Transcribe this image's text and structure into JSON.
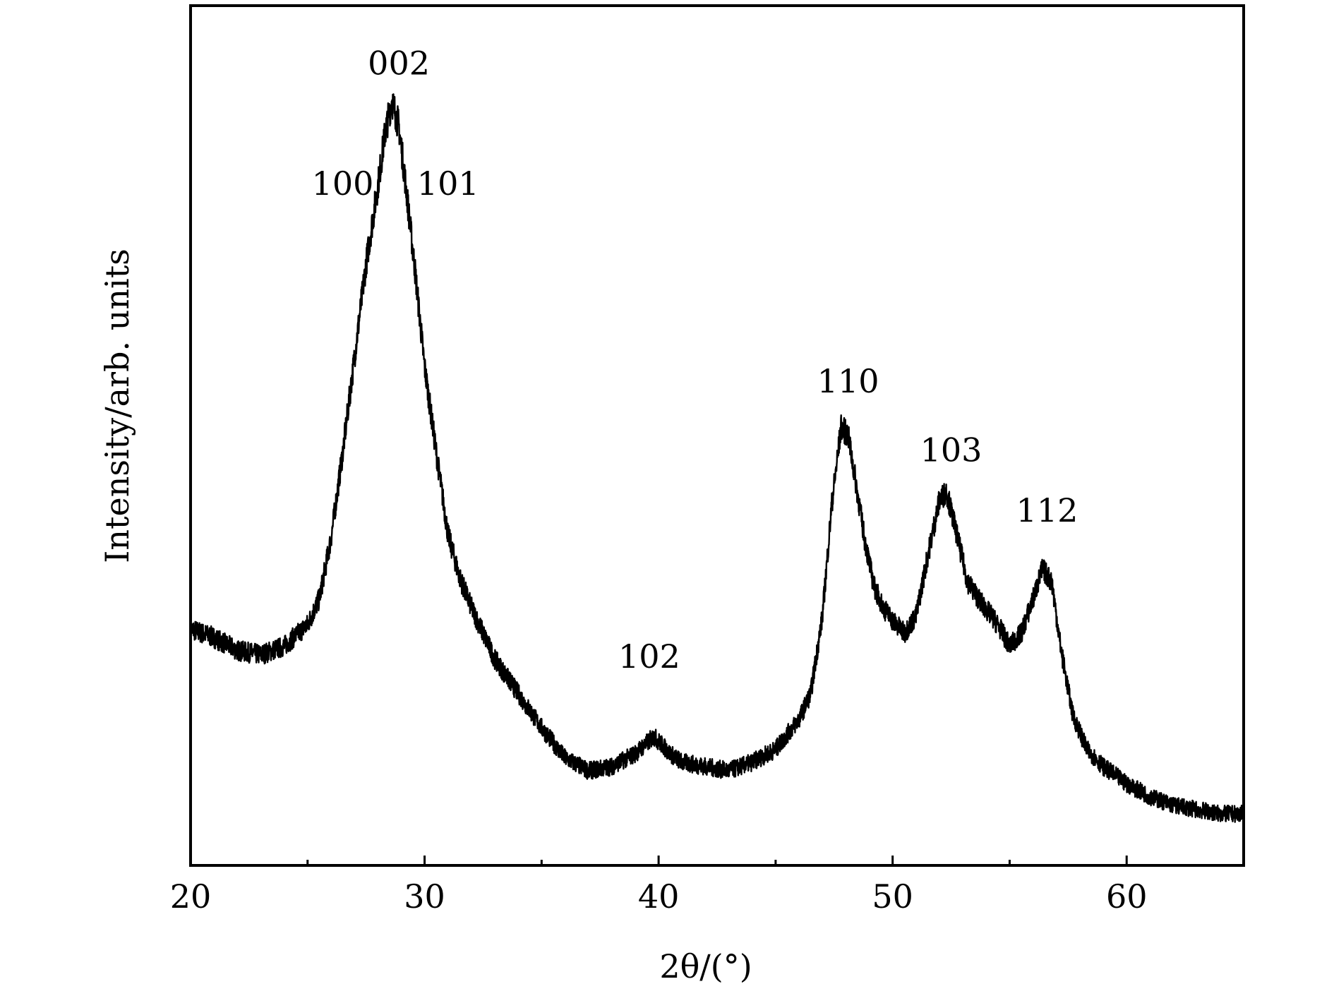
{
  "chart_data": {
    "type": "line",
    "xlabel": "2θ/(°)",
    "ylabel": "Intensity/arb. units",
    "xlim": [
      20,
      65
    ],
    "ylim": [
      0,
      100
    ],
    "x_ticks": [
      20,
      30,
      40,
      50,
      60
    ],
    "x_tick_labels": [
      "20",
      "30",
      "40",
      "50",
      "60"
    ],
    "x_minor_ticks": [
      25,
      35,
      45,
      55
    ],
    "grid": false,
    "legend": "none",
    "line_color": "#000000",
    "series": [
      {
        "x": [
          20,
          21,
          22,
          23,
          24,
          25,
          25.5,
          26,
          26.5,
          27,
          27.5,
          28,
          28.3,
          28.6,
          28.9,
          29.2,
          29.6,
          30,
          30.5,
          31,
          31.5,
          32,
          33,
          34,
          35,
          36,
          37,
          38,
          39,
          39.8,
          40.5,
          41,
          42,
          43,
          44,
          45,
          46,
          46.5,
          47,
          47.4,
          47.8,
          48.1,
          48.4,
          48.8,
          49.2,
          49.6,
          50,
          50.5,
          51,
          51.5,
          52,
          52.3,
          52.7,
          53.2,
          53.8,
          54.5,
          55,
          55.5,
          56,
          56.4,
          56.8,
          57.2,
          57.7,
          58.3,
          59,
          60,
          61,
          62,
          63,
          64,
          65
        ],
        "y": [
          27.5,
          26.5,
          25,
          24.5,
          25.5,
          28,
          31,
          38,
          48,
          59,
          70,
          79,
          85,
          89,
          86,
          79,
          69,
          58,
          48,
          38.5,
          33.5,
          30,
          24,
          20,
          16,
          12.5,
          11,
          11.5,
          13,
          15,
          13,
          12,
          11.5,
          11,
          12,
          13.5,
          17,
          20,
          29,
          42,
          51,
          50,
          45,
          38,
          32.5,
          30,
          28.5,
          27,
          29,
          36,
          42.5,
          43.5,
          39,
          33,
          30.5,
          28,
          25.5,
          27,
          31,
          34.5,
          33,
          25,
          17.5,
          13.5,
          11.5,
          9.5,
          8,
          7,
          6.5,
          6,
          6
        ]
      }
    ],
    "annotations": [
      {
        "text": "002",
        "x": 28.9,
        "y": 92
      },
      {
        "text": "100",
        "x": 26.5,
        "y": 78
      },
      {
        "text": "101",
        "x": 31,
        "y": 78
      },
      {
        "text": "102",
        "x": 39.6,
        "y": 23
      },
      {
        "text": "110",
        "x": 48.1,
        "y": 55
      },
      {
        "text": "103",
        "x": 52.5,
        "y": 47
      },
      {
        "text": "112",
        "x": 56.6,
        "y": 40
      }
    ]
  }
}
